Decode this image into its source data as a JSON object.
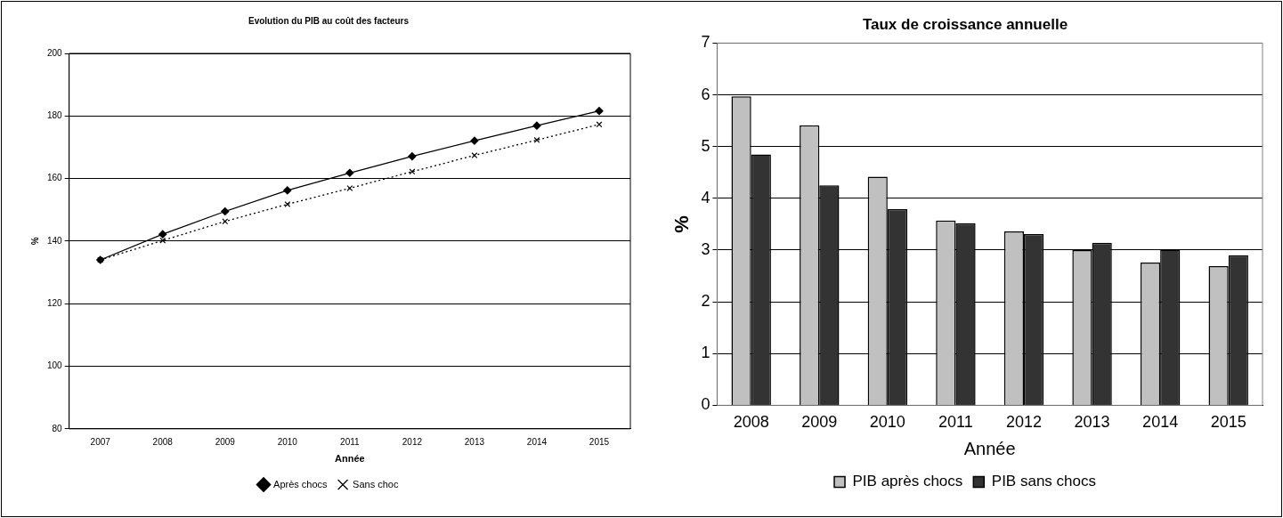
{
  "chart_data": [
    {
      "type": "line",
      "title": "Evolution du PIB au coût des facteurs",
      "xlabel": "Année",
      "ylabel": "%",
      "categories": [
        "2007",
        "2008",
        "2009",
        "2010",
        "2011",
        "2012",
        "2013",
        "2014",
        "2015"
      ],
      "series": [
        {
          "name": "Après chocs",
          "color": "#000000",
          "marker": "diamond",
          "line_style": "solid",
          "values": [
            134,
            142.2,
            149.5,
            156.2,
            161.8,
            167.1,
            172.1,
            176.9,
            181.6
          ]
        },
        {
          "name": "Sans choc",
          "color": "#000000",
          "marker": "cross",
          "line_style": "dotted",
          "values": [
            134,
            140.2,
            146.3,
            151.8,
            156.9,
            162.2,
            167.4,
            172.3,
            177.3
          ]
        }
      ],
      "ylim": [
        80,
        200
      ],
      "yticks": [
        80,
        100,
        120,
        140,
        160,
        180,
        200
      ],
      "grid": "y",
      "legend": "bottom"
    },
    {
      "type": "bar",
      "title": "Taux de croissance annuelle",
      "xlabel": "Année",
      "ylabel": "%",
      "categories": [
        "2008",
        "2009",
        "2010",
        "2011",
        "2012",
        "2013",
        "2014",
        "2015"
      ],
      "series": [
        {
          "name": "PIB après chocs",
          "color": "#c0c0c0",
          "values": [
            5.97,
            5.41,
            4.42,
            3.57,
            3.36,
            3.0,
            2.76,
            2.69
          ]
        },
        {
          "name": "PIB sans chocs",
          "color": "#333333",
          "values": [
            4.85,
            4.25,
            3.79,
            3.52,
            3.31,
            3.14,
            3.01,
            2.9
          ]
        }
      ],
      "ylim": [
        0,
        7
      ],
      "yticks": [
        0,
        1,
        2,
        3,
        4,
        5,
        6,
        7
      ],
      "grid": "y",
      "legend": "bottom"
    }
  ]
}
